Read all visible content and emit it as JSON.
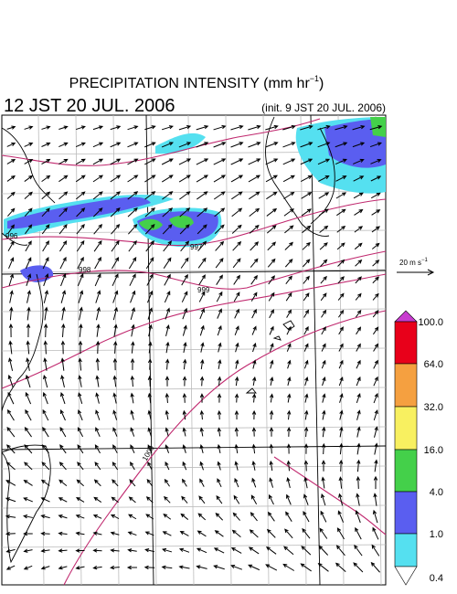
{
  "header": {
    "title": [
      "PRECIPITATION INTENSITY (mm hr",
      "−1",
      ")"
    ],
    "valid_time": "12 JST 20 JUL. 2006",
    "init_time": "(init. 9 JST 20 JUL. 2006)"
  },
  "wind_scale": [
    "20 m s",
    "−1"
  ],
  "colorbar": {
    "labels": [
      "100.0",
      "64.0",
      "32.0",
      "16.0",
      "4.0",
      "1.0",
      "0.4"
    ]
  },
  "contour_labels": [
    "996",
    "997",
    "998",
    "999",
    "1000"
  ]
}
